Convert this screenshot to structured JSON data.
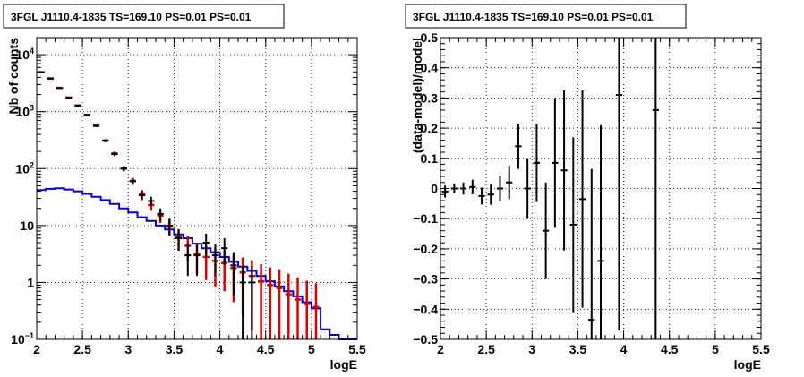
{
  "chart_data": [
    {
      "type": "histogram",
      "title": "3FGL J1110.4-1835 TS=169.10 PS=0.01 PS=0.01",
      "xlabel": "logE",
      "ylabel": "Nb of counts",
      "xlim": [
        2,
        5.5
      ],
      "ylim": [
        0.1,
        20000
      ],
      "yscale": "log",
      "grid": true,
      "x_ticks": [
        "2",
        "2.5",
        "3",
        "3.5",
        "4",
        "4.5",
        "5",
        "5.5"
      ],
      "y_ticks": [
        "10^{-1}",
        "1",
        "10",
        "10^{2}",
        "10^{3}",
        "10^{4}"
      ],
      "series": [
        {
          "color": "#000000",
          "style": "points-with-error-bars",
          "x": [
            2.05,
            2.15,
            2.25,
            2.35,
            2.45,
            2.55,
            2.65,
            2.75,
            2.85,
            2.95,
            3.05,
            3.15,
            3.25,
            3.35,
            3.45,
            3.55,
            3.65,
            3.75,
            3.85,
            3.95,
            4.05,
            4.15,
            4.25,
            4.35
          ],
          "y": [
            4900,
            3800,
            2600,
            1750,
            1270,
            880,
            560,
            310,
            180,
            100,
            60,
            34,
            27,
            16,
            10,
            6,
            3,
            3,
            5,
            3,
            4,
            2,
            1,
            1
          ],
          "yerr": [
            70,
            62,
            51,
            42,
            36,
            30,
            24,
            18,
            14,
            10,
            8,
            6,
            5,
            4,
            3.2,
            2.4,
            1.7,
            1.7,
            2.2,
            1.7,
            2,
            1.4,
            0.95,
            0.95
          ]
        },
        {
          "color": "#dd0000",
          "style": "model-with-error-bars",
          "x": [
            2.05,
            2.15,
            2.25,
            2.35,
            2.45,
            2.55,
            2.65,
            2.75,
            2.85,
            2.95,
            3.05,
            3.15,
            3.25,
            3.35,
            3.45,
            3.55,
            3.65,
            3.75,
            3.85,
            3.95,
            4.05,
            4.15,
            4.25,
            4.35,
            4.45,
            4.55,
            4.65,
            4.75,
            4.85,
            4.95,
            5.05
          ],
          "y": [
            4950,
            3850,
            2620,
            1770,
            1290,
            870,
            570,
            310,
            185,
            100,
            61,
            36,
            23,
            15,
            9.6,
            6.2,
            4.4,
            3.2,
            2.8,
            2.4,
            2.2,
            1.8,
            1.5,
            1.3,
            1.05,
            0.9,
            0.8,
            0.62,
            0.5,
            0.42,
            0.37
          ],
          "yerr": [
            70,
            62,
            51,
            42,
            36,
            30,
            24,
            18,
            14,
            10,
            8,
            6,
            4.8,
            3.9,
            3.1,
            2.5,
            2.1,
            1.8,
            1.7,
            1.55,
            1.5,
            1.35,
            1.25,
            1.15,
            1.05,
            0.95,
            0.9,
            0.8,
            0.72,
            0.65,
            0.6
          ]
        },
        {
          "color": "#0000dd",
          "style": "step",
          "x_edges": [
            2.0,
            2.1,
            2.2,
            2.3,
            2.4,
            2.5,
            2.6,
            2.7,
            2.8,
            2.9,
            3.0,
            3.1,
            3.2,
            3.3,
            3.4,
            3.5,
            3.6,
            3.7,
            3.8,
            3.9,
            4.0,
            4.1,
            4.2,
            4.3,
            4.4,
            4.5,
            4.6,
            4.7,
            4.8,
            4.9,
            5.0,
            5.1,
            5.2,
            5.3,
            5.4,
            5.5
          ],
          "y": [
            42,
            44,
            45,
            43,
            40,
            36,
            32,
            28,
            24,
            20,
            17,
            14,
            12,
            10,
            8.5,
            7,
            6,
            4.8,
            4,
            3.4,
            2.8,
            2.3,
            1.9,
            1.6,
            1.3,
            1.05,
            0.85,
            0.7,
            0.57,
            0.45,
            0.35,
            0.15,
            0.12,
            0.1,
            0.1
          ]
        }
      ]
    },
    {
      "type": "scatter",
      "title": "3FGL J1110.4-1835 TS=169.10 PS=0.01 PS=0.01",
      "xlabel": "logE",
      "ylabel": "(data-model)/model",
      "xlim": [
        2,
        5.5
      ],
      "ylim": [
        -0.5,
        0.5
      ],
      "yscale": "linear",
      "grid": true,
      "x_ticks": [
        "2",
        "2.5",
        "3",
        "3.5",
        "4",
        "4.5",
        "5",
        "5.5"
      ],
      "y_ticks": [
        "-0.5",
        "-0.4",
        "-0.3",
        "-0.2",
        "-0.1",
        "0",
        "0.1",
        "0.2",
        "0.3",
        "0.4",
        "0.5"
      ],
      "series": [
        {
          "color": "#000000",
          "style": "points-with-error-bars",
          "x": [
            2.05,
            2.15,
            2.25,
            2.35,
            2.45,
            2.55,
            2.65,
            2.75,
            2.85,
            2.95,
            3.05,
            3.15,
            3.25,
            3.35,
            3.45,
            3.55,
            3.65,
            3.75,
            3.95,
            4.35
          ],
          "y": [
            -0.01,
            0.0,
            0.0,
            0.005,
            -0.025,
            -0.02,
            0.0,
            0.02,
            0.14,
            0.0,
            0.085,
            -0.14,
            0.085,
            0.06,
            -0.12,
            -0.035,
            -0.435,
            -0.24,
            0.31,
            0.26
          ],
          "yerr": [
            0.02,
            0.016,
            0.02,
            0.024,
            0.028,
            0.034,
            0.042,
            0.055,
            0.075,
            0.1,
            0.13,
            0.16,
            0.215,
            0.265,
            0.29,
            0.36,
            0.5,
            0.45,
            0.78,
            0.9
          ]
        }
      ]
    }
  ]
}
